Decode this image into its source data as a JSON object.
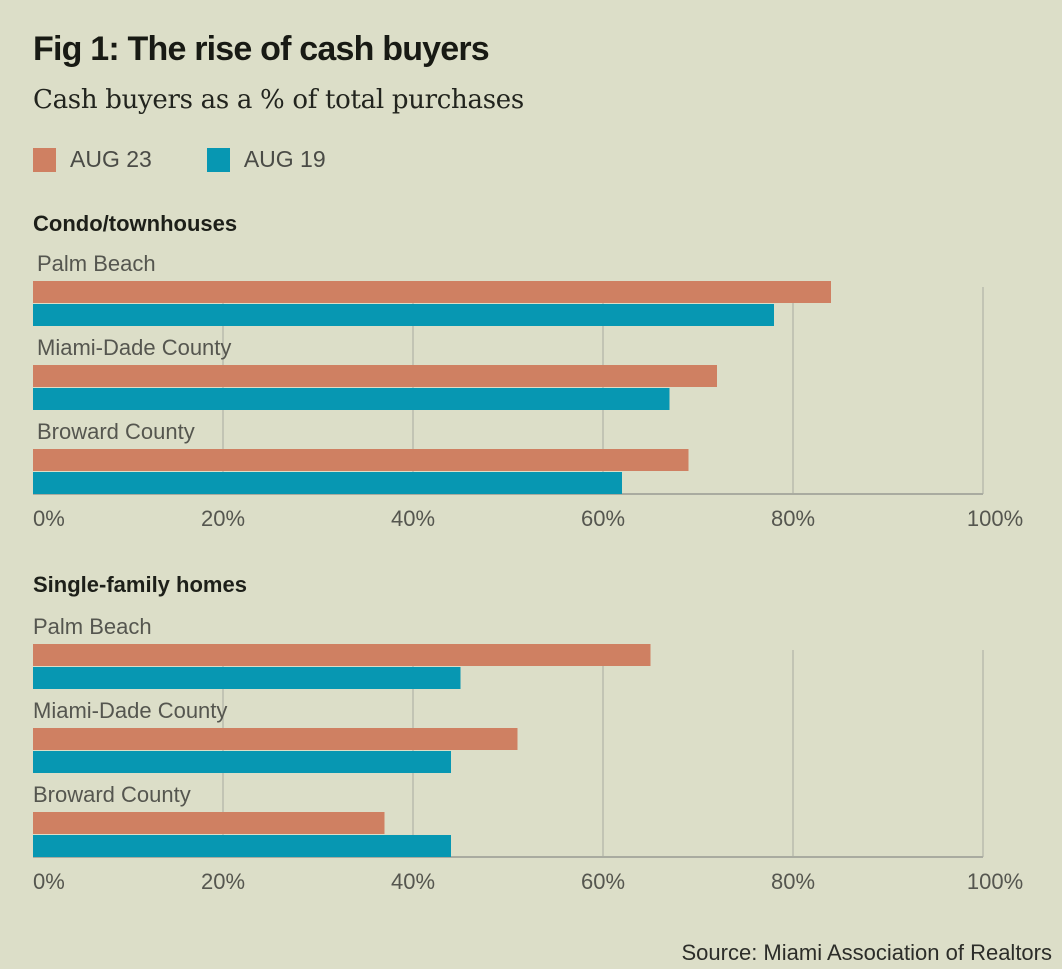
{
  "title": "Fig 1: The rise of cash buyers",
  "subtitle": "Cash buyers as a % of total purchases",
  "legend": [
    {
      "label": "AUG 23",
      "color": "#cf8062"
    },
    {
      "label": "AUG 19",
      "color": "#0797b2"
    }
  ],
  "source": "Source: Miami Association of Realtors",
  "chart_data": [
    {
      "type": "bar",
      "orientation": "horizontal",
      "title": "Condo/townhouses",
      "categories": [
        "Palm Beach",
        "Miami-Dade County",
        "Broward County"
      ],
      "series": [
        {
          "name": "AUG 23",
          "color": "#cf8062",
          "values": [
            84,
            72,
            69
          ]
        },
        {
          "name": "AUG 19",
          "color": "#0797b2",
          "values": [
            78,
            67,
            62
          ]
        }
      ],
      "xlabel": "",
      "ylabel": "",
      "xlim": [
        0,
        100
      ],
      "xticks": [
        "0%",
        "20%",
        "40%",
        "60%",
        "80%",
        "100%"
      ],
      "grid": true,
      "legend": "top-left"
    },
    {
      "type": "bar",
      "orientation": "horizontal",
      "title": "Single-family homes",
      "categories": [
        "Palm Beach",
        "Miami-Dade County",
        "Broward County"
      ],
      "series": [
        {
          "name": "AUG 23",
          "color": "#cf8062",
          "values": [
            65,
            51,
            37
          ]
        },
        {
          "name": "AUG 19",
          "color": "#0797b2",
          "values": [
            45,
            44,
            44
          ]
        }
      ],
      "xlabel": "",
      "ylabel": "",
      "xlim": [
        0,
        100
      ],
      "xticks": [
        "0%",
        "20%",
        "40%",
        "60%",
        "80%",
        "100%"
      ],
      "grid": true,
      "legend": "top-left"
    }
  ]
}
